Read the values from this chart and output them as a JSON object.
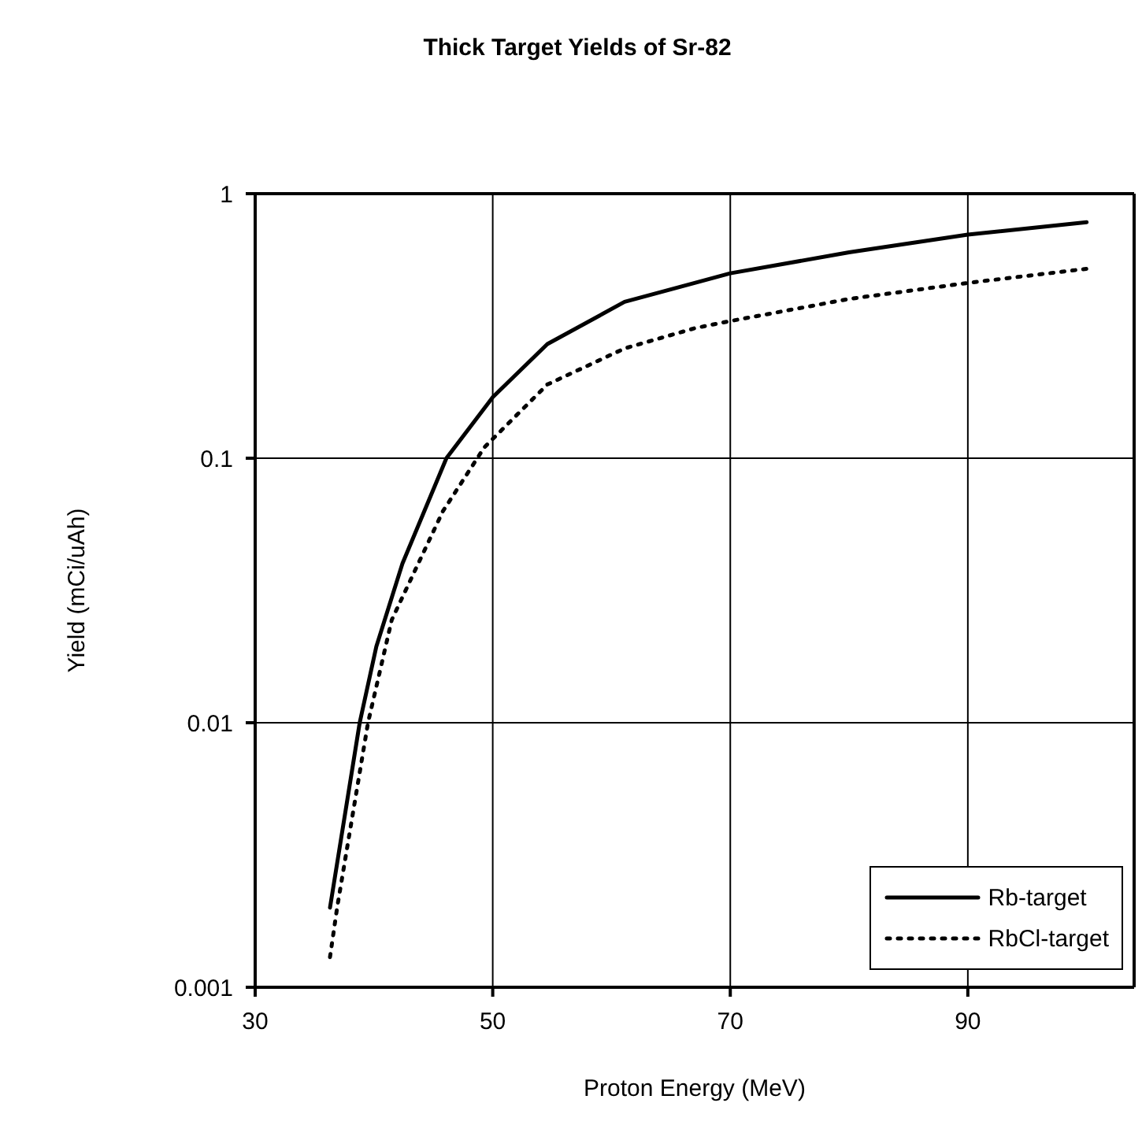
{
  "chart_data": {
    "type": "line",
    "title": "Thick Target Yields of Sr-82",
    "xlabel": "Proton Energy (MeV)",
    "ylabel": "Yield (mCi/uAh)",
    "xlim": [
      30,
      104
    ],
    "xticks": [
      30,
      50,
      70,
      90
    ],
    "ylim": [
      0.001,
      1
    ],
    "yticks": [
      0.001,
      0.01,
      0.1,
      1
    ],
    "log": "y",
    "grid": true,
    "legend": "bottom right",
    "marker": "none",
    "series": [
      {
        "name": "Rb-target",
        "color": "#000000",
        "line_style": "solid",
        "x": [
          36.3,
          38.8,
          40.2,
          42.4,
          46.1,
          50,
          54.6,
          61.1,
          67,
          70,
          80,
          90,
          100
        ],
        "values": [
          0.002,
          0.01,
          0.0194,
          0.04,
          0.1,
          0.17,
          0.27,
          0.39,
          0.46,
          0.5,
          0.6,
          0.7,
          0.78
        ]
      },
      {
        "name": "RbCl-target",
        "color": "#000000",
        "line_style": "dotted",
        "x": [
          36.3,
          36.9,
          39.5,
          41.5,
          45.8,
          49.3,
          54.6,
          61.1,
          67,
          70,
          80,
          90,
          100
        ],
        "values": [
          0.0013,
          0.002,
          0.01,
          0.0245,
          0.063,
          0.11,
          0.19,
          0.26,
          0.31,
          0.33,
          0.4,
          0.46,
          0.52
        ]
      }
    ]
  }
}
